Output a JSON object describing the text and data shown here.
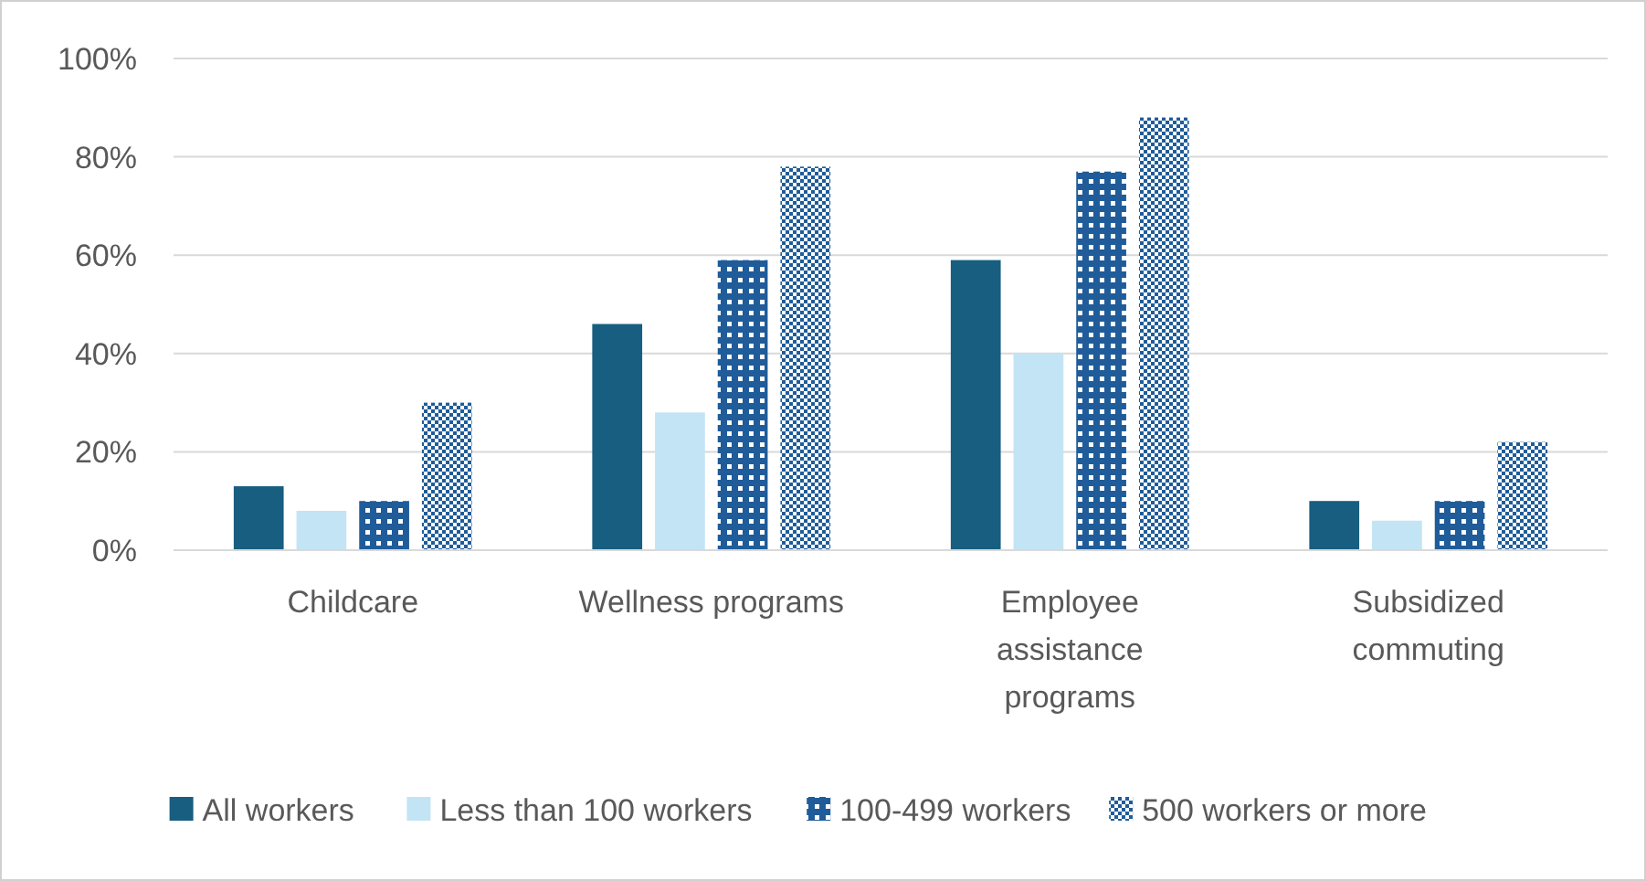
{
  "chart_data": {
    "type": "bar",
    "categories": [
      "Childcare",
      "Wellness programs",
      "Employee assistance programs",
      "Subsidized commuting"
    ],
    "series": [
      {
        "name": "All workers",
        "color": "#175e80",
        "values": [
          13,
          46,
          59,
          10
        ]
      },
      {
        "name": "Less than 100 workers",
        "color": "#c2e4f5",
        "values": [
          8,
          28,
          40,
          6
        ]
      },
      {
        "name": "100-499 workers",
        "color": "#1f5c99",
        "values": [
          10,
          59,
          77,
          10
        ]
      },
      {
        "name": "500 workers or more",
        "color": "#1f5c99",
        "values": [
          30,
          78,
          88,
          22
        ]
      }
    ],
    "ylim": [
      0,
      100
    ],
    "yticks": [
      {
        "value": 0,
        "label": "0%"
      },
      {
        "value": 20,
        "label": "20%"
      },
      {
        "value": 40,
        "label": "40%"
      },
      {
        "value": 60,
        "label": "60%"
      },
      {
        "value": 80,
        "label": "80%"
      },
      {
        "value": 100,
        "label": "100%"
      }
    ],
    "grid": "y",
    "legend": "bottom"
  }
}
